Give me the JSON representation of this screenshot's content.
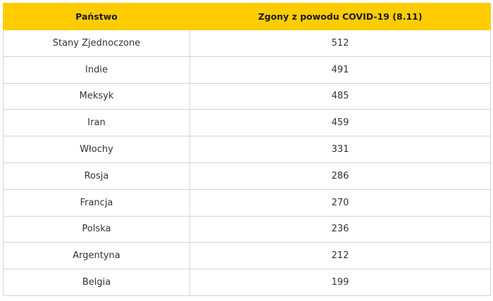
{
  "chart_data": {
    "type": "table",
    "columns": [
      "Państwo",
      "Zgony z powodu COVID-19 (8.11)"
    ],
    "rows": [
      {
        "country": "Stany Zjednoczone",
        "deaths": "512"
      },
      {
        "country": "Indie",
        "deaths": "491"
      },
      {
        "country": "Meksyk",
        "deaths": "485"
      },
      {
        "country": "Iran",
        "deaths": "459"
      },
      {
        "country": "Włochy",
        "deaths": "331"
      },
      {
        "country": "Rosja",
        "deaths": "286"
      },
      {
        "country": "Francja",
        "deaths": "270"
      },
      {
        "country": "Polska",
        "deaths": "236"
      },
      {
        "country": "Argentyna",
        "deaths": "212"
      },
      {
        "country": "Belgia",
        "deaths": "199"
      }
    ],
    "colors": {
      "header_background": "#ffcc00",
      "border": "#d4d4d4"
    }
  }
}
